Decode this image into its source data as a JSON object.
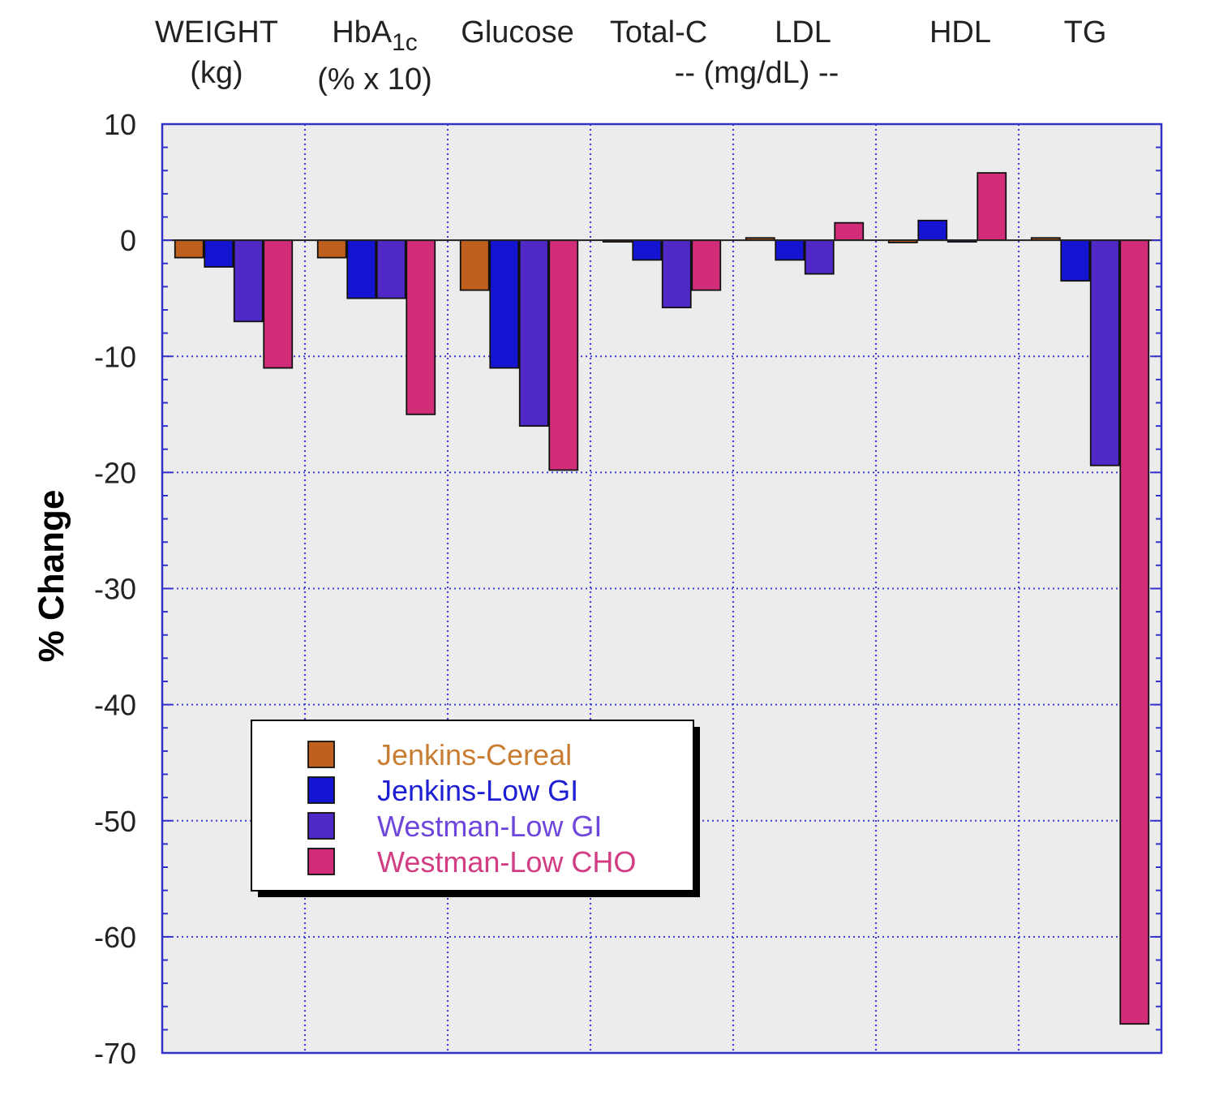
{
  "chart_data": {
    "type": "bar",
    "categories": [
      "WEIGHT",
      "HbA1c",
      "Glucose",
      "Total-C",
      "LDL",
      "HDL",
      "TG"
    ],
    "category_labels": [
      {
        "line1": "WEIGHT",
        "line2": "(kg)"
      },
      {
        "line1": "HbA",
        "sub": "1c",
        "line2": "(% x 10)"
      },
      {
        "line1": "Glucose",
        "line2": ""
      },
      {
        "line1": "Total-C",
        "line2": ""
      },
      {
        "line1": "LDL",
        "line2": ""
      },
      {
        "line1": "HDL",
        "line2": ""
      },
      {
        "line1": "TG",
        "line2": ""
      }
    ],
    "group_unit_label": "-- (mg/dL) --",
    "series": [
      {
        "name": "Jenkins-Cereal",
        "color": "#c0601e",
        "values": [
          -1.5,
          -1.5,
          -4.3,
          0,
          0.2,
          -0.2,
          0.2
        ]
      },
      {
        "name": "Jenkins-Low GI",
        "color": "#1414d2",
        "values": [
          -2.3,
          -5.0,
          -11.0,
          -1.7,
          -1.7,
          1.7,
          -3.5
        ]
      },
      {
        "name": "Westman-Low GI",
        "color": "#5028c8",
        "values": [
          -7.0,
          -5.0,
          -16.0,
          -5.8,
          -2.9,
          0,
          -19.4
        ]
      },
      {
        "name": "Westman-Low CHO",
        "color": "#d22d78",
        "values": [
          -11.0,
          -15.0,
          -19.8,
          -4.3,
          1.5,
          5.8,
          -67.5
        ]
      }
    ],
    "legend_text_colors": [
      "#c87d32",
      "#1e1ed2",
      "#6e46dc",
      "#d23c82"
    ],
    "ylabel": "% Change",
    "xlabel": "",
    "ylim": [
      -70,
      10
    ],
    "yticks": [
      10,
      0,
      -10,
      -20,
      -30,
      -40,
      -50,
      -60,
      -70
    ],
    "grid": true,
    "legend_position": "lower-left",
    "plot_background": "#ececec",
    "axis_color": "#3232c8",
    "grid_color": "#3c3cd2"
  }
}
